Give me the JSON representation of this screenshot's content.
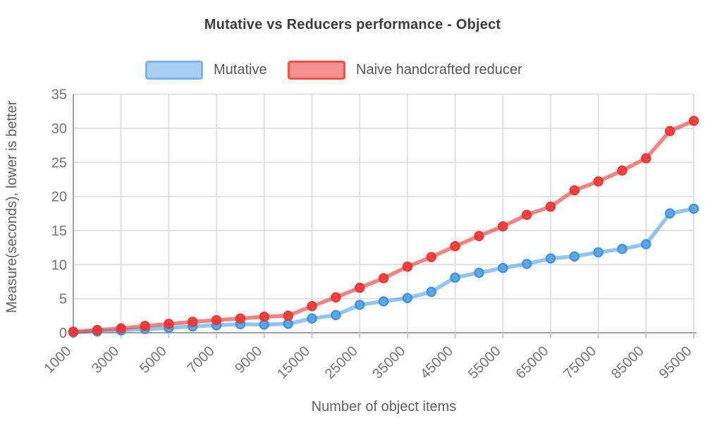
{
  "chart_data": {
    "type": "line",
    "title": "Mutative vs Reducers performance - Object",
    "xlabel": "Number of object items",
    "ylabel": "Measure(seconds), lower is better",
    "x": [
      1000,
      2000,
      3000,
      4000,
      5000,
      6000,
      7000,
      8000,
      9000,
      10000,
      15000,
      20000,
      25000,
      30000,
      35000,
      40000,
      45000,
      50000,
      55000,
      60000,
      65000,
      70000,
      75000,
      80000,
      85000,
      90000,
      95000
    ],
    "x_tick_labels": [
      "1000",
      "3000",
      "5000",
      "7000",
      "9000",
      "15000",
      "25000",
      "35000",
      "45000",
      "55000",
      "65000",
      "75000",
      "85000",
      "95000"
    ],
    "yticks": [
      0,
      5,
      10,
      15,
      20,
      25,
      30,
      35
    ],
    "ylim": [
      0,
      35
    ],
    "grid": true,
    "legend_position": "top",
    "series": [
      {
        "name": "Mutative",
        "line_color": "rgba(73,158,228,0.6)",
        "marker_color": "rgba(73,158,228,0.8)",
        "marker_ring": "#3f93dd",
        "swatch_fill": "#a9cff2",
        "swatch_border": "#79b6ec",
        "values": [
          0.05,
          0.2,
          0.35,
          0.55,
          0.7,
          0.95,
          1.1,
          1.25,
          1.2,
          1.3,
          2.1,
          2.6,
          4.1,
          4.6,
          5.1,
          6.0,
          8.1,
          8.8,
          9.5,
          10.1,
          10.9,
          11.2,
          11.8,
          12.3,
          13.0,
          17.5,
          18.2
        ]
      },
      {
        "name": "Naive handcrafted reducer",
        "line_color": "rgba(243,42,42,0.58)",
        "marker_color": "rgba(242,48,42,0.85)",
        "marker_ring": "#e93a35",
        "swatch_fill": "#f79190",
        "swatch_border": "#f4504b",
        "values": [
          0.15,
          0.4,
          0.65,
          1.0,
          1.3,
          1.6,
          1.85,
          2.1,
          2.35,
          2.5,
          3.9,
          5.2,
          6.6,
          8.0,
          9.7,
          11.1,
          12.7,
          14.2,
          15.6,
          17.3,
          18.5,
          20.9,
          22.2,
          23.8,
          25.6,
          29.6,
          31.1
        ]
      }
    ],
    "axis_color": "#a3a3a3",
    "grid_color": "#dcdcdc",
    "tick_color": "#c9c9c9",
    "tick_label_color": "#757575",
    "title_color": "#3d3d3d",
    "axis_title_color": "#616161",
    "legend_text_color": "#565656"
  }
}
